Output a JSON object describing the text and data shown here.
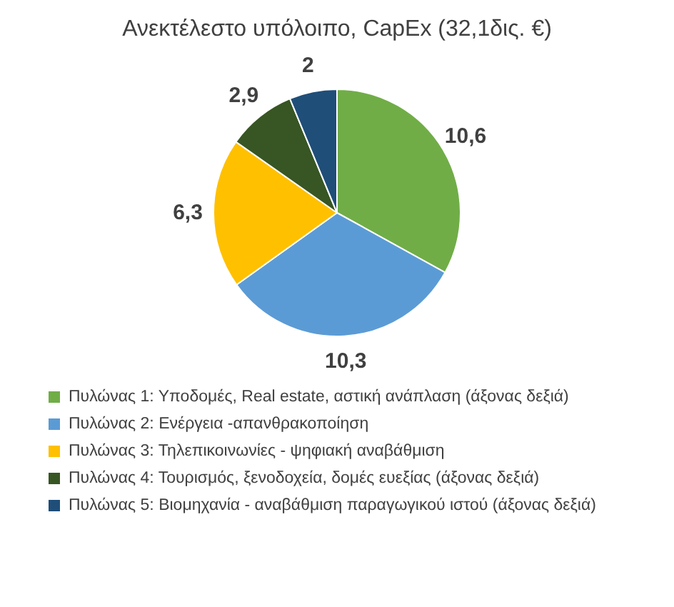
{
  "chart_data": {
    "type": "pie",
    "title": "Ανεκτέλεστο υπόλοιπο, CapEx (32,1δις. €)",
    "categories": [
      "Πυλώνας 1: Υποδομές, Real estate, αστική ανάπλαση (άξονας δεξιά)",
      "Πυλώνας 2: Ενέργεια -απανθρακοποίηση",
      "Πυλώνας 3: Τηλεπικοινωνίες - ψηφιακή αναβάθμιση",
      "Πυλώνας 4: Τουρισμός, ξενοδοχεία, δομές ευεξίας (άξονας δεξιά)",
      "Πυλώνας 5: Βιομηχανία - αναβάθμιση παραγωγικού ιστού (άξονας δεξιά)"
    ],
    "values": [
      10.6,
      10.3,
      6.3,
      2.9,
      2
    ],
    "value_labels": [
      "10,6",
      "10,3",
      "6,3",
      "2,9",
      "2"
    ],
    "colors": [
      "#70ad47",
      "#5b9bd5",
      "#ffc000",
      "#375623",
      "#1f4e79"
    ],
    "legend": "bottom"
  }
}
